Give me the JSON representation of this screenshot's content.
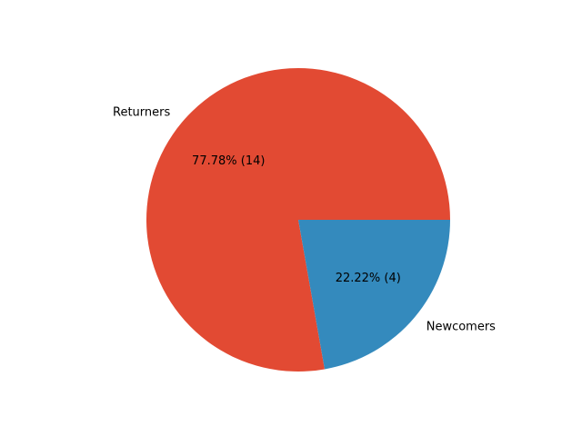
{
  "chart_data": {
    "type": "pie",
    "title": "",
    "start_angle_deg": 0,
    "direction": "counterclockwise",
    "slices": [
      {
        "label": "Returners",
        "value": 14,
        "percent_label": "77.78%  (14)",
        "color": "#E24A33"
      },
      {
        "label": "Newcomers",
        "value": 4,
        "percent_label": "22.22%  (4)",
        "color": "#348ABD"
      }
    ]
  }
}
